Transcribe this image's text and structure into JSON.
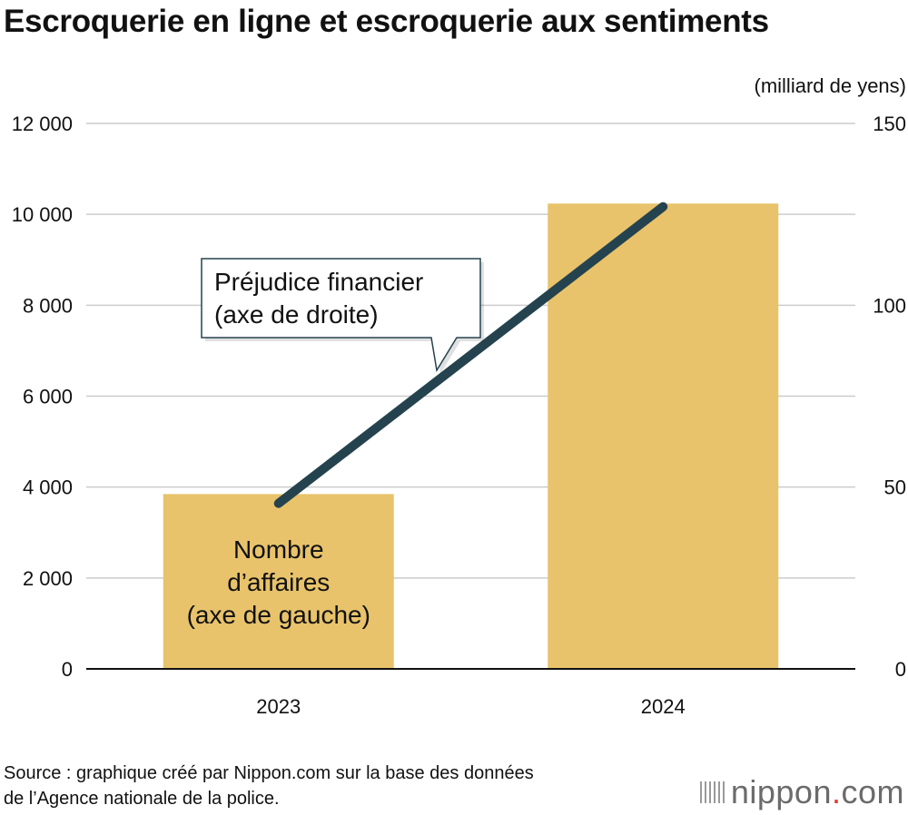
{
  "page": {
    "title": "Escroquerie en ligne et escroquerie aux sentiments",
    "source_line1": "Source : graphique créé par Nippon.com sur la base des données",
    "source_line2": "de l’Agence nationale de la police.",
    "logo": {
      "word": "nippon",
      "dot": ".",
      "suffix": "com"
    }
  },
  "colors": {
    "bar": "#e8c36b",
    "line": "#25434f",
    "grid": "#cccccc",
    "axis": "#111111"
  },
  "chart_data": {
    "type": "bar+line",
    "categories": [
      "2023",
      "2024"
    ],
    "unit_right": "(milliard de yens)",
    "y_left": {
      "min": 0,
      "max": 12000,
      "ticks": [
        0,
        2000,
        4000,
        6000,
        8000,
        10000,
        12000
      ],
      "tick_labels": [
        "0",
        "2 000",
        "4 000",
        "6 000",
        "8 000",
        "10 000",
        "12 000"
      ]
    },
    "y_right": {
      "min": 0,
      "max": 150,
      "ticks": [
        0,
        50,
        100,
        150
      ],
      "tick_labels": [
        "0",
        "50",
        "100",
        "150"
      ]
    },
    "series": [
      {
        "name": "Nombre d’affaires (axe de gauche)",
        "type": "bar",
        "axis": "left",
        "values": [
          3846,
          10237
        ],
        "label_lines": [
          "Nombre",
          "d’affaires",
          "(axe de gauche)"
        ]
      },
      {
        "name": "Préjudice financier (axe de droite)",
        "type": "line",
        "axis": "right",
        "values": [
          45.5,
          127.1
        ],
        "label_lines": [
          "Préjudice financier",
          "(axe de droite)"
        ]
      }
    ],
    "grid": true
  }
}
